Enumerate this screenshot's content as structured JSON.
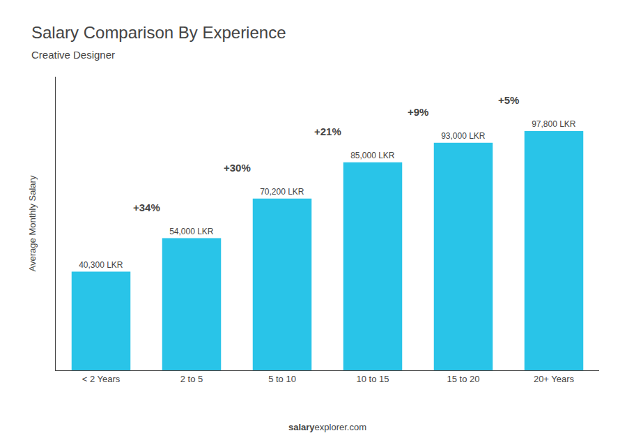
{
  "chart_data": {
    "type": "bar",
    "title": "Salary Comparison By Experience",
    "subtitle": "Creative Designer",
    "ylabel": "Average Monthly Salary",
    "categories": [
      "< 2 Years",
      "2 to 5",
      "5 to 10",
      "10 to 15",
      "15 to 20",
      "20+ Years"
    ],
    "values": [
      40300,
      54000,
      70200,
      85000,
      93000,
      97800
    ],
    "value_labels": [
      "40,300 LKR",
      "54,000 LKR",
      "70,200 LKR",
      "85,000 LKR",
      "93,000 LKR",
      "97,800 LKR"
    ],
    "data_labels": true,
    "annotations": [
      "+34%",
      "+30%",
      "+21%",
      "+9%",
      "+5%"
    ],
    "footer": [
      "salary",
      "explorer.com"
    ],
    "color": "#29c4e8",
    "ylim": [
      0,
      120000
    ],
    "tick_labels": "x",
    "grid": false
  }
}
